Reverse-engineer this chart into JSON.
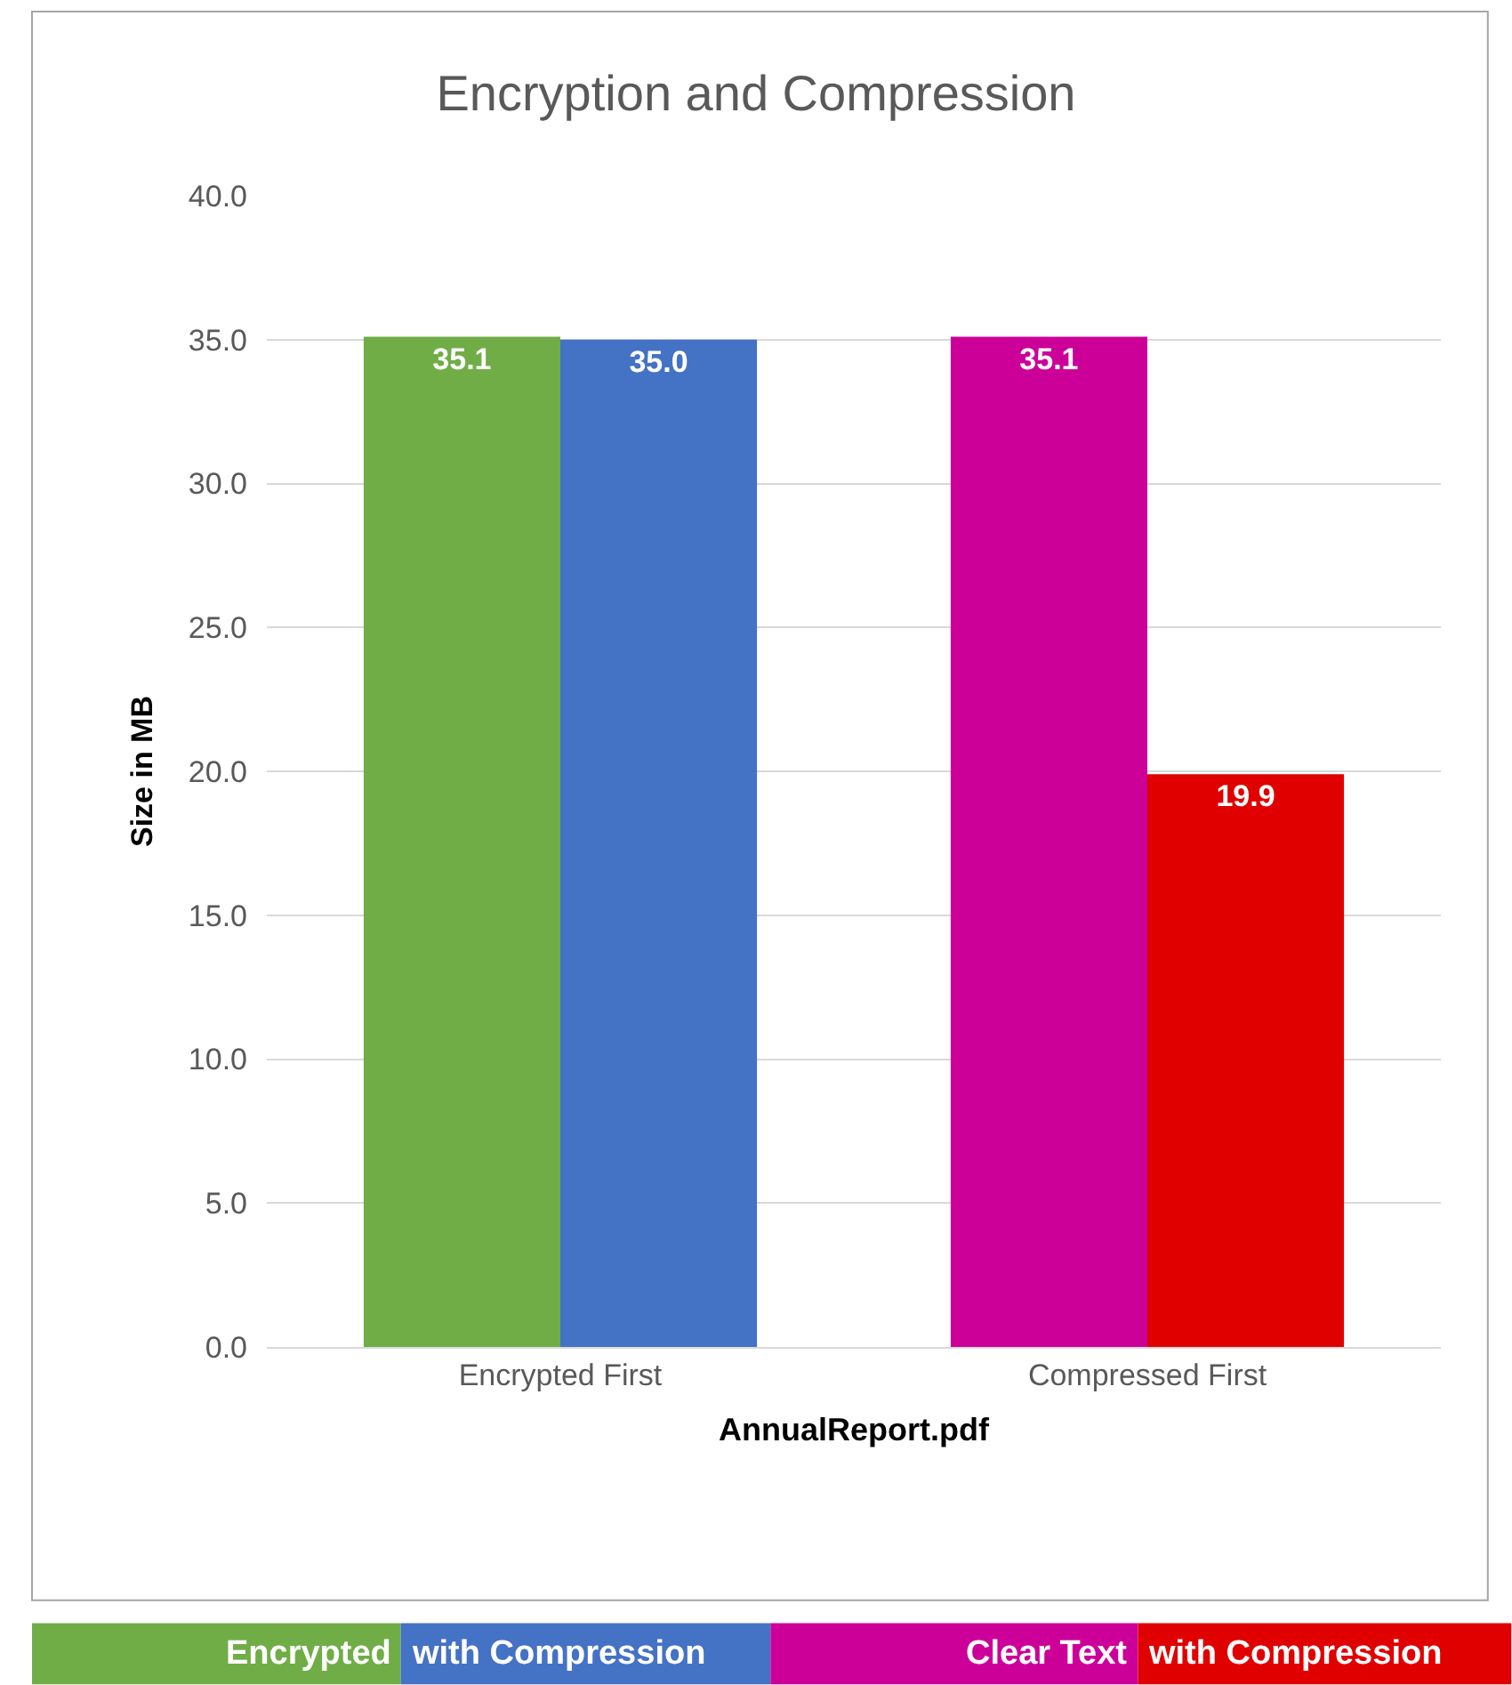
{
  "chart_data": {
    "type": "bar",
    "title": "Encryption and Compression",
    "xlabel": "AnnualReport.pdf",
    "ylabel": "Size in MB",
    "categories": [
      "Encrypted First",
      "Compressed First"
    ],
    "series": [
      {
        "colors": [
          "#70ad47",
          "#cc0099"
        ],
        "values": [
          35.1,
          35.1
        ],
        "value_labels": [
          "35.1",
          "35.1"
        ]
      },
      {
        "colors": [
          "#4472c4",
          "#e00000"
        ],
        "values": [
          35.0,
          19.9
        ],
        "value_labels": [
          "35.0",
          "19.9"
        ]
      }
    ],
    "ylim": [
      0,
      40
    ],
    "yticks": [
      {
        "value": 0,
        "label": "0.0"
      },
      {
        "value": 5,
        "label": "5.0"
      },
      {
        "value": 10,
        "label": "10.0"
      },
      {
        "value": 15,
        "label": "15.0"
      },
      {
        "value": 20,
        "label": "20.0"
      },
      {
        "value": 25,
        "label": "25.0"
      },
      {
        "value": 30,
        "label": "30.0"
      },
      {
        "value": 35,
        "label": "35.0"
      },
      {
        "value": 40,
        "label": "40.0"
      }
    ],
    "grid": "y",
    "annotations": [
      "Encrypted",
      "with Compression",
      "Clear Text",
      "with Compression"
    ]
  }
}
